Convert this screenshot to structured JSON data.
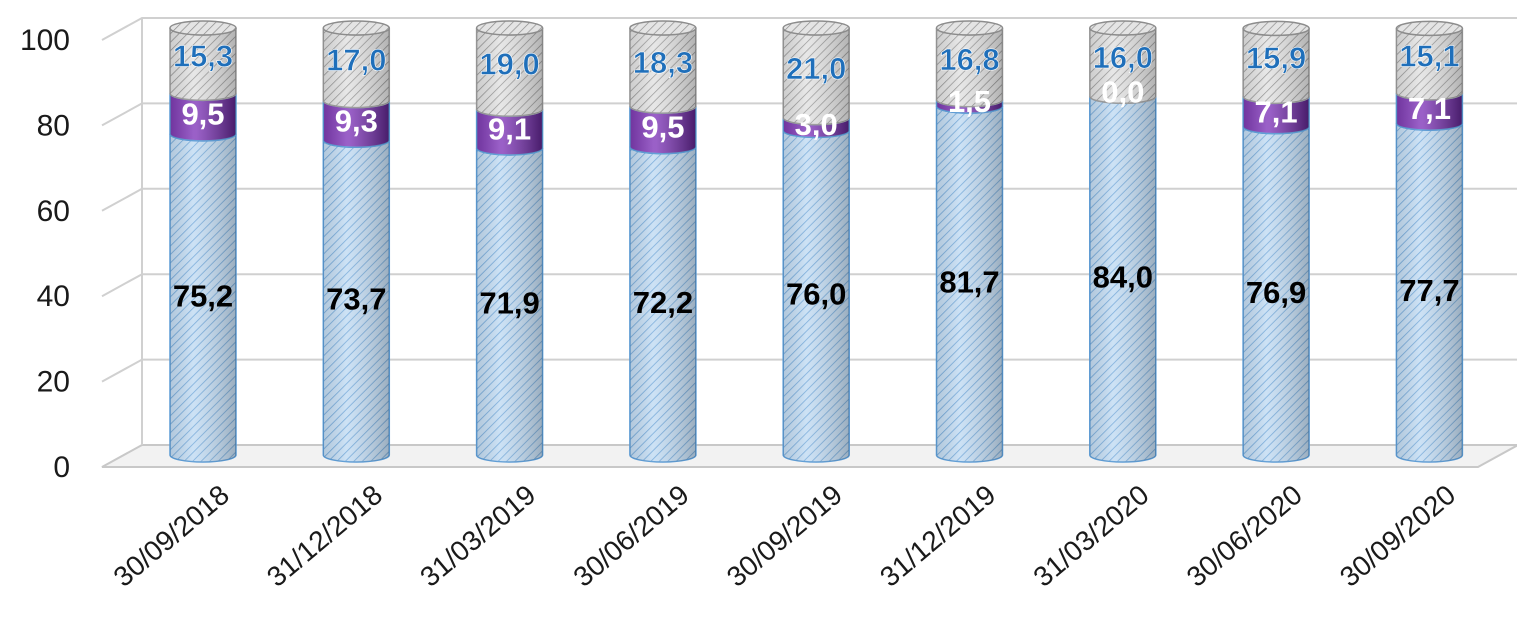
{
  "chart_data": {
    "type": "bar",
    "stacked": true,
    "style": "3d-cylinder",
    "title": "",
    "xlabel": "",
    "ylabel": "",
    "ylim": [
      0,
      100
    ],
    "yticks": [
      0,
      20,
      40,
      60,
      80,
      100
    ],
    "grid": true,
    "legend": "none",
    "categories": [
      "30/09/2018",
      "31/12/2018",
      "31/03/2019",
      "30/06/2019",
      "30/09/2019",
      "31/12/2019",
      "31/03/2020",
      "30/06/2020",
      "30/09/2020"
    ],
    "series": [
      {
        "values": [
          75.2,
          73.7,
          71.9,
          72.2,
          76.0,
          81.7,
          84.0,
          76.9,
          77.7
        ],
        "labels": [
          "75,2",
          "73,7",
          "71,9",
          "72,2",
          "76,0",
          "81,7",
          "84,0",
          "76,9",
          "77,7"
        ],
        "color": "#bcd9f2",
        "label_color": "#000000"
      },
      {
        "values": [
          9.5,
          9.3,
          9.1,
          9.5,
          3.0,
          1.5,
          0.0,
          7.1,
          7.1
        ],
        "labels": [
          "9,5",
          "9,3",
          "9,1",
          "9,5",
          "3,0",
          "1,5",
          "0,0",
          "7,1",
          "7,1"
        ],
        "color": "#7030a0",
        "label_color": "#ffffff"
      },
      {
        "values": [
          15.3,
          17.0,
          19.0,
          18.3,
          21.0,
          16.8,
          16.0,
          15.9,
          15.1
        ],
        "labels": [
          "15,3",
          "17,0",
          "19,0",
          "18,3",
          "21,0",
          "16,8",
          "16,0",
          "15,9",
          "15,1"
        ],
        "color": "#d9d9d9",
        "label_color": "#1f6fba"
      }
    ]
  }
}
